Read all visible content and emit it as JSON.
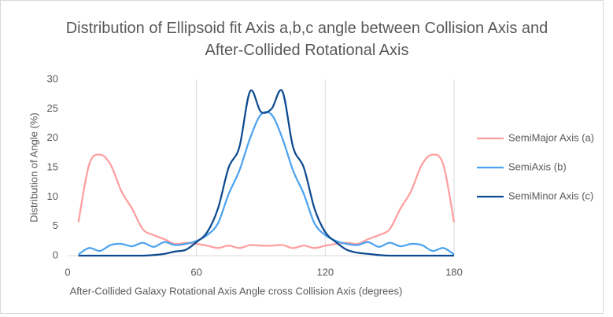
{
  "chart_data": {
    "type": "line",
    "title": "Distribution of Ellipsoid fit Axis a,b,c angle between Collision Axis and After-Collided Rotational Axis",
    "x_label": "After-Collided Galaxy Rotational Axis Angle cross Collision Axis (degrees)",
    "y_label": "Distribution of Angle (%)",
    "x": [
      5,
      10,
      15,
      20,
      25,
      30,
      35,
      40,
      45,
      50,
      55,
      60,
      65,
      70,
      75,
      80,
      85,
      90,
      95,
      100,
      105,
      110,
      115,
      120,
      125,
      130,
      135,
      140,
      145,
      150,
      155,
      160,
      165,
      170,
      175,
      180
    ],
    "series": [
      {
        "name": "SemiMajor Axis (a)",
        "color": "#ff9e9e",
        "values": [
          5.7,
          15.5,
          17.2,
          15.5,
          11,
          8,
          4.5,
          3.5,
          2.8,
          2,
          2.2,
          2,
          1.7,
          1.3,
          1.7,
          1.3,
          1.8,
          1.7,
          1.7,
          1.8,
          1.3,
          1.7,
          1.3,
          1.7,
          2,
          2.2,
          2,
          2.8,
          3.5,
          4.5,
          8,
          11,
          15.5,
          17.2,
          15.5,
          5.7
        ]
      },
      {
        "name": "SemiAxis (b)",
        "color": "#4da3ef",
        "values": [
          0.2,
          1.3,
          0.8,
          1.8,
          2,
          1.6,
          2.2,
          1.5,
          2.3,
          1.8,
          2,
          2.5,
          3.5,
          5.5,
          10.5,
          14.5,
          20,
          24,
          24,
          20,
          14.5,
          10.5,
          5.5,
          3.5,
          2.5,
          2,
          1.8,
          2.3,
          1.5,
          2.2,
          1.6,
          2,
          1.8,
          0.8,
          1.3,
          0.2
        ]
      },
      {
        "name": "SemiMinor Axis (c)",
        "color": "#0d4a8f",
        "values": [
          0,
          0,
          0,
          0,
          0,
          0,
          0,
          0.1,
          0.3,
          0.7,
          1,
          2.3,
          4,
          8,
          15,
          18.5,
          28,
          24.5,
          25,
          28,
          18.5,
          15,
          8,
          4,
          2.3,
          1,
          0.5,
          0.3,
          0.1,
          0,
          0,
          0,
          0,
          0,
          0,
          0
        ]
      }
    ],
    "xlim": [
      0,
      180
    ],
    "xticks": [
      0,
      60,
      120,
      180
    ],
    "ylim": [
      0,
      30
    ],
    "yticks": [
      0,
      5,
      10,
      15,
      20,
      25,
      30
    ],
    "grid": "x",
    "legend": "right"
  }
}
